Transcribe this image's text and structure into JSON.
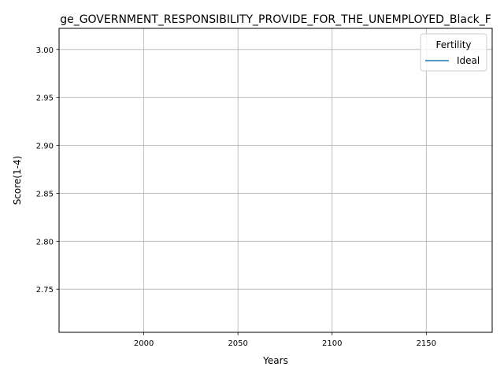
{
  "chart_data": {
    "type": "line",
    "title": "ge_GOVERNMENT_RESPONSIBILITY_PROVIDE_FOR_THE_UNEMPLOYED_Black_F",
    "xlabel": "Years",
    "ylabel": "Score(1-4)",
    "xlim": [
      1955,
      2185
    ],
    "ylim": [
      2.705,
      3.022
    ],
    "xticks": [
      2000,
      2050,
      2100,
      2150
    ],
    "xtick_labels": [
      "2000",
      "2050",
      "2100",
      "2150"
    ],
    "yticks": [
      2.75,
      2.8,
      2.85,
      2.9,
      2.95,
      3.0
    ],
    "ytick_labels": [
      "2.75",
      "2.80",
      "2.85",
      "2.90",
      "2.95",
      "3.00"
    ],
    "grid": true,
    "legend": {
      "title": "Fertility",
      "placement": "top-right",
      "entries": [
        "Ideal"
      ]
    },
    "series": [
      {
        "name": "Ideal",
        "color": "#1f77b4",
        "x": [],
        "y": []
      }
    ]
  }
}
